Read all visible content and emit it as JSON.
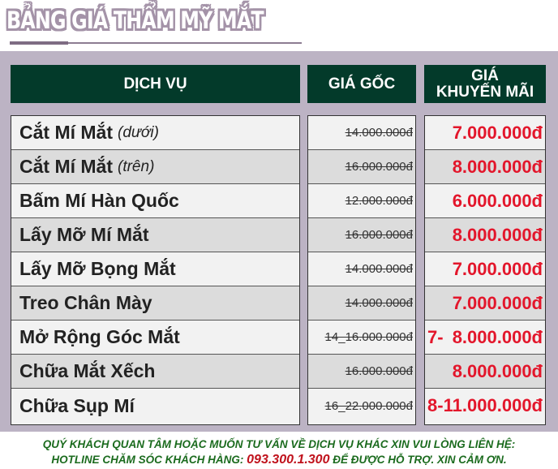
{
  "title": "BẢNG GIÁ THẨM MỸ MẮT",
  "headers": {
    "service": "DỊCH VỤ",
    "original": "GIÁ GỐC",
    "promo_line1": "GIÁ",
    "promo_line2": "KHUYẾN MÃI"
  },
  "rows": [
    {
      "service": "Cắt Mí Mắt",
      "note": "(dưới)",
      "original": "14.000.000đ",
      "promo_prefix": "",
      "promo": "7.000.000đ"
    },
    {
      "service": "Cắt Mí Mắt",
      "note": "(trên)",
      "original": "16.000.000đ",
      "promo_prefix": "",
      "promo": "8.000.000đ"
    },
    {
      "service": "Bấm Mí Hàn Quốc",
      "note": "",
      "original": "12.000.000đ",
      "promo_prefix": "",
      "promo": "6.000.000đ"
    },
    {
      "service": "Lấy Mỡ Mí Mắt",
      "note": "",
      "original": "16.000.000đ",
      "promo_prefix": "",
      "promo": "8.000.000đ"
    },
    {
      "service": "Lấy Mỡ Bọng Mắt",
      "note": "",
      "original": "14.000.000đ",
      "promo_prefix": "",
      "promo": "7.000.000đ"
    },
    {
      "service": "Treo Chân Mày",
      "note": "",
      "original": "14.000.000đ",
      "promo_prefix": "",
      "promo": "7.000.000đ"
    },
    {
      "service": "Mở Rộng Góc Mắt",
      "note": "",
      "original": "14_16.000.000đ",
      "promo_prefix": "7-",
      "promo": "8.000.000đ"
    },
    {
      "service": "Chữa Mắt Xếch",
      "note": "",
      "original": "16.000.000đ",
      "promo_prefix": "",
      "promo": "8.000.000đ"
    },
    {
      "service": "Chữa Sụp Mí",
      "note": "",
      "original": "16_22.000.000đ",
      "promo_prefix": "8-",
      "promo": "11.000.000đ"
    }
  ],
  "footer": {
    "line1": "QUÝ KHÁCH QUAN TÂM HOẶC MUỐN TƯ VẤN VỀ DỊCH VỤ KHÁC XIN VUI LÒNG LIÊN HỆ:",
    "line2_prefix": "HOTLINE CHĂM SÓC KHÁCH HÀNG: ",
    "hotline": "093.300.1.300",
    "line2_suffix": " ĐỂ ĐƯỢC HỖ TRỢ. XIN CẢM ƠN."
  },
  "colors": {
    "header_bg": "#033a2a",
    "panel": "#bcb3c4",
    "promo": "#e3162b",
    "footer": "#1b6b1e"
  }
}
